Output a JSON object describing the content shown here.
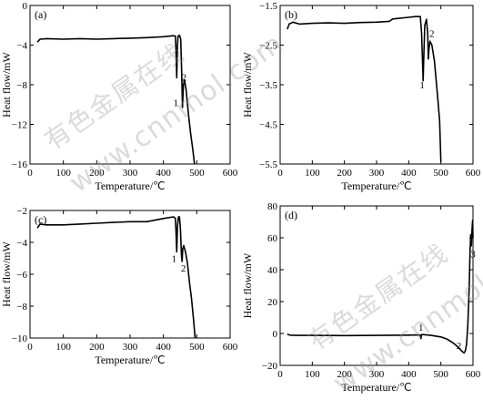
{
  "watermark": {
    "cn": "有色金属在线",
    "url": "www.cnnmol.com"
  },
  "chart_data": [
    {
      "type": "line",
      "panel": "(a)",
      "xlabel": "Temperature/℃",
      "ylabel": "Heat flow/mW",
      "xlim": [
        0,
        600
      ],
      "ylim": [
        -16,
        0
      ],
      "xticks": [
        0,
        100,
        200,
        300,
        400,
        500,
        600
      ],
      "yticks": [
        -16,
        -12,
        -8,
        -4,
        0
      ],
      "peak_labels": [
        {
          "text": "1",
          "x": 437,
          "y": -9.8
        },
        {
          "text": "2",
          "x": 462,
          "y": -7.2
        }
      ],
      "series": [
        {
          "points": [
            [
              22,
              -3.7
            ],
            [
              30,
              -3.4
            ],
            [
              50,
              -3.35
            ],
            [
              100,
              -3.4
            ],
            [
              150,
              -3.35
            ],
            [
              200,
              -3.4
            ],
            [
              250,
              -3.35
            ],
            [
              300,
              -3.3
            ],
            [
              350,
              -3.25
            ],
            [
              400,
              -3.15
            ],
            [
              430,
              -3.05
            ],
            [
              436,
              -3.1
            ],
            [
              438,
              -5
            ],
            [
              440,
              -7.3
            ],
            [
              442,
              -4
            ],
            [
              444,
              -3.1
            ],
            [
              448,
              -3.0
            ],
            [
              452,
              -3.4
            ],
            [
              455,
              -7
            ],
            [
              457,
              -10.3
            ],
            [
              460,
              -8
            ],
            [
              463,
              -7.5
            ],
            [
              468,
              -8.5
            ],
            [
              475,
              -11
            ],
            [
              482,
              -13
            ],
            [
              488,
              -14.5
            ],
            [
              493,
              -16
            ]
          ]
        }
      ]
    },
    {
      "type": "line",
      "panel": "(b)",
      "xlabel": "Temperature/℃",
      "ylabel": "Heat flow/mW",
      "xlim": [
        0,
        600
      ],
      "ylim": [
        -5.5,
        -1.5
      ],
      "xticks": [
        0,
        100,
        200,
        300,
        400,
        500,
        600
      ],
      "yticks": [
        -5.5,
        -4.5,
        -3.5,
        -2.5,
        -1.5
      ],
      "peak_labels": [
        {
          "text": "1",
          "x": 442,
          "y": -3.5
        },
        {
          "text": "2",
          "x": 472,
          "y": -2.2
        }
      ],
      "series": [
        {
          "points": [
            [
              22,
              -2.1
            ],
            [
              28,
              -1.97
            ],
            [
              40,
              -1.92
            ],
            [
              60,
              -1.97
            ],
            [
              100,
              -1.95
            ],
            [
              150,
              -1.94
            ],
            [
              200,
              -1.95
            ],
            [
              250,
              -1.93
            ],
            [
              300,
              -1.92
            ],
            [
              340,
              -1.9
            ],
            [
              350,
              -1.84
            ],
            [
              400,
              -1.8
            ],
            [
              420,
              -1.78
            ],
            [
              436,
              -1.78
            ],
            [
              440,
              -2.2
            ],
            [
              443,
              -2.9
            ],
            [
              445,
              -3.4
            ],
            [
              447,
              -2.8
            ],
            [
              450,
              -2.0
            ],
            [
              455,
              -1.85
            ],
            [
              459,
              -2.2
            ],
            [
              461,
              -2.85
            ],
            [
              463,
              -2.6
            ],
            [
              466,
              -2.4
            ],
            [
              472,
              -2.5
            ],
            [
              480,
              -2.9
            ],
            [
              490,
              -3.8
            ],
            [
              496,
              -4.4
            ],
            [
              500,
              -5.45
            ]
          ]
        }
      ]
    },
    {
      "type": "line",
      "panel": "(c)",
      "xlabel": "Temperature/℃",
      "ylabel": "Heat flow/mW",
      "xlim": [
        0,
        600
      ],
      "ylim": [
        -10,
        -2
      ],
      "xticks": [
        0,
        100,
        200,
        300,
        400,
        500,
        600
      ],
      "yticks": [
        -10,
        -8,
        -6,
        -4,
        -2
      ],
      "peak_labels": [
        {
          "text": "1",
          "x": 432,
          "y": -5.0
        },
        {
          "text": "2",
          "x": 460,
          "y": -5.6
        }
      ],
      "series": [
        {
          "points": [
            [
              22,
              -3.1
            ],
            [
              30,
              -2.85
            ],
            [
              50,
              -2.9
            ],
            [
              100,
              -2.9
            ],
            [
              150,
              -2.85
            ],
            [
              200,
              -2.8
            ],
            [
              250,
              -2.75
            ],
            [
              300,
              -2.7
            ],
            [
              350,
              -2.7
            ],
            [
              400,
              -2.5
            ],
            [
              430,
              -2.4
            ],
            [
              436,
              -2.5
            ],
            [
              438,
              -3.5
            ],
            [
              440,
              -4.6
            ],
            [
              442,
              -3.0
            ],
            [
              445,
              -2.4
            ],
            [
              448,
              -2.4
            ],
            [
              451,
              -3.2
            ],
            [
              454,
              -4.8
            ],
            [
              456,
              -5.2
            ],
            [
              458,
              -4.4
            ],
            [
              461,
              -4.2
            ],
            [
              466,
              -4.6
            ],
            [
              472,
              -5.3
            ],
            [
              478,
              -6.5
            ],
            [
              484,
              -7.5
            ],
            [
              490,
              -8.8
            ],
            [
              495,
              -10
            ]
          ]
        }
      ]
    },
    {
      "type": "line",
      "panel": "(d)",
      "xlabel": "Temperature/℃",
      "ylabel": "Heat flow/mW",
      "xlim": [
        0,
        600
      ],
      "ylim": [
        -20,
        80
      ],
      "xticks": [
        0,
        100,
        200,
        300,
        400,
        500,
        600
      ],
      "yticks": [
        -20,
        0,
        20,
        40,
        60,
        80
      ],
      "peak_labels": [
        {
          "text": "1",
          "x": 438,
          "y": 4
        },
        {
          "text": "2",
          "x": 556,
          "y": -7.5
        },
        {
          "text": "3",
          "x": 600,
          "y": 50
        }
      ],
      "series": [
        {
          "points": [
            [
              22,
              -0.4
            ],
            [
              30,
              -1.0
            ],
            [
              50,
              -1.2
            ],
            [
              100,
              -1.2
            ],
            [
              200,
              -1.3
            ],
            [
              300,
              -1.2
            ],
            [
              400,
              -1.0
            ],
            [
              430,
              -0.9
            ],
            [
              436,
              -1.0
            ],
            [
              438,
              -3.2
            ],
            [
              440,
              -0.7
            ],
            [
              444,
              -0.7
            ],
            [
              470,
              -1.2
            ],
            [
              500,
              -2.2
            ],
            [
              520,
              -3.6
            ],
            [
              540,
              -6.2
            ],
            [
              555,
              -8.8
            ],
            [
              565,
              -11.0
            ],
            [
              572,
              -12.2
            ],
            [
              576,
              -11
            ],
            [
              580,
              -7
            ],
            [
              584,
              5
            ],
            [
              588,
              28
            ],
            [
              591,
              52
            ],
            [
              593,
              62
            ],
            [
              595,
              55
            ],
            [
              597,
              65
            ],
            [
              599,
              71
            ],
            [
              600,
              60
            ]
          ]
        }
      ]
    }
  ]
}
